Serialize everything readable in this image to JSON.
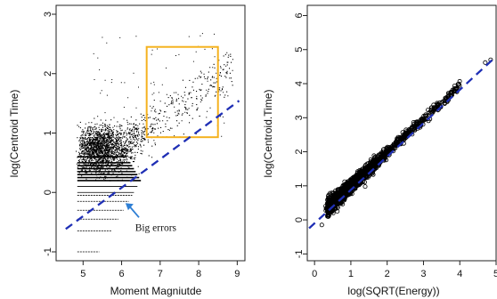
{
  "chart_data": [
    {
      "type": "scatter",
      "xlabel": "Moment Magniutde",
      "ylabel": "log(Centroid Time)",
      "xlim": [
        4.3,
        9.2
      ],
      "ylim": [
        -1.15,
        3.15
      ],
      "x_ticks": [
        5,
        6,
        7,
        8,
        9
      ],
      "y_ticks": [
        -1,
        0,
        1,
        2,
        3
      ],
      "grid": false,
      "legend": "none",
      "fit_line": {
        "slope": 0.48,
        "intercept": -2.8,
        "x_range": [
          4.55,
          9.05
        ],
        "style": "dashed",
        "color": "#1f2fb5"
      },
      "annotations": [
        {
          "text": "Big errors",
          "at": [
            6.3,
            -0.3
          ],
          "arrow_to": [
            6.1,
            -0.18
          ],
          "arrow_color": "#2f7fd4"
        }
      ],
      "highlight_box": {
        "x": [
          6.65,
          8.5
        ],
        "y": [
          0.93,
          2.45
        ],
        "color": "#f5b21f"
      },
      "colors": {
        "points": "#000000",
        "box": "#f5b21f",
        "fit": "#1f2fb5",
        "arrow": "#2f7fd4"
      }
    },
    {
      "type": "scatter",
      "xlabel": "log(SQRT(Energy))",
      "ylabel": "log(Centroid.Time)",
      "xlim": [
        -0.2,
        5.0
      ],
      "ylim": [
        -1.2,
        6.3
      ],
      "x_ticks": [
        0,
        1,
        2,
        3,
        4,
        5
      ],
      "y_ticks": [
        -1,
        0,
        1,
        2,
        3,
        4,
        5,
        6
      ],
      "grid": false,
      "legend": "none",
      "fit_line": {
        "slope": 0.98,
        "intercept": -0.1,
        "x_range": [
          -0.15,
          4.9
        ],
        "style": "dashed",
        "color": "#1f2fb5"
      },
      "colors": {
        "points": "#000000",
        "fit": "#1f2fb5"
      }
    }
  ]
}
